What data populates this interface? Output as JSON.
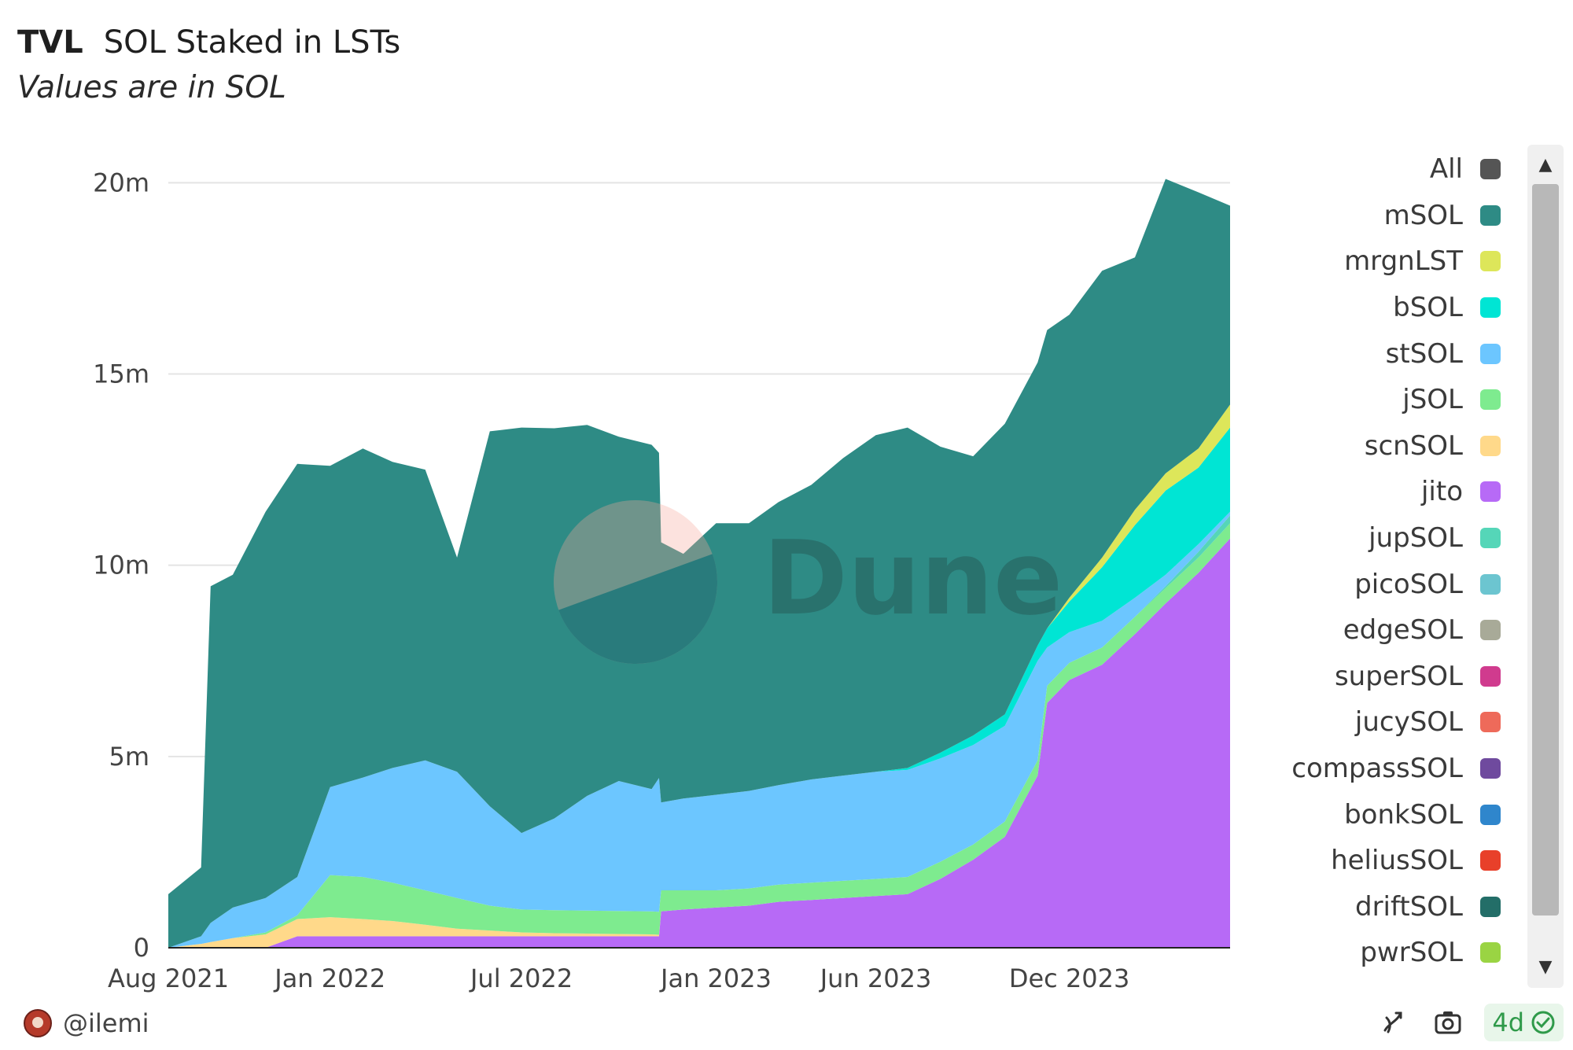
{
  "header": {
    "tag": "TVL",
    "title": "SOL Staked in LSTs",
    "subtitle": "Values are in SOL"
  },
  "watermark": "Dune",
  "footer": {
    "username": "@ilemi",
    "refresh_label": "4d"
  },
  "legend": [
    {
      "label": "All",
      "color": "#555555"
    },
    {
      "label": "mSOL",
      "color": "#2e8b85"
    },
    {
      "label": "mrgnLST",
      "color": "#dde65a"
    },
    {
      "label": "bSOL",
      "color": "#00e5d4"
    },
    {
      "label": "stSOL",
      "color": "#6cc6ff"
    },
    {
      "label": "jSOL",
      "color": "#7eeb8f"
    },
    {
      "label": "scnSOL",
      "color": "#ffd98a"
    },
    {
      "label": "jito",
      "color": "#b76af6"
    },
    {
      "label": "jupSOL",
      "color": "#55d6b8"
    },
    {
      "label": "picoSOL",
      "color": "#6cc5d0"
    },
    {
      "label": "edgeSOL",
      "color": "#a8aa98"
    },
    {
      "label": "superSOL",
      "color": "#d03b8e"
    },
    {
      "label": "jucySOL",
      "color": "#ee6a5a"
    },
    {
      "label": "compassSOL",
      "color": "#6f4a9e"
    },
    {
      "label": "bonkSOL",
      "color": "#2f86cc"
    },
    {
      "label": "heliusSOL",
      "color": "#e8402a"
    },
    {
      "label": "driftSOL",
      "color": "#236e68"
    },
    {
      "label": "pwrSOL",
      "color": "#9ad443"
    }
  ],
  "chart_data": {
    "type": "area",
    "stacked": true,
    "title": "SOL Staked in LSTs",
    "subtitle": "Values are in SOL",
    "x_ticks": [
      "Aug 2021",
      "Jan 2022",
      "Jul 2022",
      "Jan 2023",
      "Jun 2023",
      "Dec 2023"
    ],
    "y_ticks": [
      "0",
      "5m",
      "10m",
      "15m",
      "20m"
    ],
    "ylim": [
      0,
      20500000
    ],
    "grid": true,
    "legend_position": "right",
    "x": [
      "2021-08-01",
      "2021-09-01",
      "2021-09-10",
      "2021-10-01",
      "2021-11-01",
      "2021-12-01",
      "2022-01-01",
      "2022-02-01",
      "2022-03-01",
      "2022-04-01",
      "2022-05-01",
      "2022-06-01",
      "2022-07-01",
      "2022-08-01",
      "2022-09-01",
      "2022-10-01",
      "2022-11-01",
      "2022-11-08",
      "2022-11-10",
      "2022-12-01",
      "2023-01-01",
      "2023-02-01",
      "2023-03-01",
      "2023-04-01",
      "2023-05-01",
      "2023-06-01",
      "2023-07-01",
      "2023-08-01",
      "2023-09-01",
      "2023-10-01",
      "2023-11-01",
      "2023-11-10",
      "2023-12-01",
      "2024-01-01",
      "2024-02-01",
      "2024-03-01",
      "2024-04-01",
      "2024-05-01"
    ],
    "series": [
      {
        "name": "jito",
        "color": "#b76af6",
        "values": [
          0,
          0,
          0,
          0,
          0,
          300000,
          300000,
          300000,
          300000,
          300000,
          300000,
          300000,
          300000,
          300000,
          300000,
          300000,
          300000,
          300000,
          950000,
          1000000,
          1050000,
          1100000,
          1200000,
          1250000,
          1300000,
          1350000,
          1400000,
          1800000,
          2300000,
          2900000,
          4500000,
          6400000,
          7000000,
          7400000,
          8200000,
          9000000,
          9800000,
          10700000
        ]
      },
      {
        "name": "scnSOL",
        "color": "#ffd98a",
        "values": [
          0,
          100000,
          150000,
          250000,
          350000,
          450000,
          500000,
          450000,
          400000,
          300000,
          200000,
          150000,
          100000,
          80000,
          70000,
          60000,
          50000,
          40000,
          0,
          0,
          0,
          0,
          0,
          0,
          0,
          0,
          0,
          0,
          0,
          0,
          0,
          0,
          0,
          0,
          0,
          0,
          0,
          0
        ]
      },
      {
        "name": "jSOL",
        "color": "#7eeb8f",
        "values": [
          0,
          0,
          0,
          0,
          50000,
          100000,
          1100000,
          1100000,
          1000000,
          900000,
          800000,
          650000,
          600000,
          600000,
          600000,
          600000,
          600000,
          600000,
          550000,
          500000,
          450000,
          450000,
          450000,
          450000,
          450000,
          450000,
          450000,
          450000,
          400000,
          400000,
          400000,
          450000,
          450000,
          450000,
          450000,
          400000,
          400000,
          400000
        ]
      },
      {
        "name": "jupSOL",
        "color": "#55d6b8",
        "values": [
          0,
          0,
          0,
          0,
          0,
          0,
          0,
          0,
          0,
          0,
          0,
          0,
          0,
          0,
          0,
          0,
          0,
          0,
          0,
          0,
          0,
          0,
          0,
          0,
          0,
          0,
          0,
          0,
          0,
          0,
          0,
          0,
          0,
          0,
          0,
          50000,
          150000,
          200000
        ]
      },
      {
        "name": "stSOL",
        "color": "#6cc6ff",
        "values": [
          0,
          200000,
          500000,
          800000,
          900000,
          1000000,
          2300000,
          2600000,
          3000000,
          3400000,
          3300000,
          2600000,
          2000000,
          2400000,
          3000000,
          3400000,
          3200000,
          3500000,
          2300000,
          2400000,
          2500000,
          2550000,
          2600000,
          2700000,
          2750000,
          2800000,
          2800000,
          2700000,
          2600000,
          2500000,
          2600000,
          1000000,
          800000,
          700000,
          500000,
          300000,
          200000,
          100000
        ]
      },
      {
        "name": "bSOL",
        "color": "#00e5d4",
        "values": [
          0,
          0,
          0,
          0,
          0,
          0,
          0,
          0,
          0,
          0,
          0,
          0,
          0,
          0,
          0,
          0,
          0,
          0,
          0,
          0,
          0,
          0,
          0,
          0,
          0,
          0,
          50000,
          150000,
          250000,
          300000,
          400000,
          500000,
          800000,
          1400000,
          1900000,
          2200000,
          2000000,
          2200000
        ]
      },
      {
        "name": "mrgnLST",
        "color": "#dde65a",
        "values": [
          0,
          0,
          0,
          0,
          0,
          0,
          0,
          0,
          0,
          0,
          0,
          0,
          0,
          0,
          0,
          0,
          0,
          0,
          0,
          0,
          0,
          0,
          0,
          0,
          0,
          0,
          0,
          0,
          0,
          0,
          0,
          0,
          100000,
          250000,
          400000,
          450000,
          500000,
          600000
        ]
      },
      {
        "name": "mSOL",
        "color": "#2e8b85",
        "values": [
          1400000,
          1800000,
          8800000,
          8700000,
          10100000,
          10800000,
          8400000,
          8600000,
          8000000,
          7600000,
          5600000,
          9800000,
          10600000,
          10200000,
          9700000,
          9000000,
          9000000,
          8500000,
          6800000,
          6400000,
          7100000,
          7000000,
          7400000,
          7700000,
          8300000,
          8800000,
          8900000,
          8000000,
          7300000,
          7600000,
          7400000,
          7800000,
          7400000,
          7500000,
          6600000,
          7700000,
          6700000,
          5200000
        ]
      }
    ]
  }
}
